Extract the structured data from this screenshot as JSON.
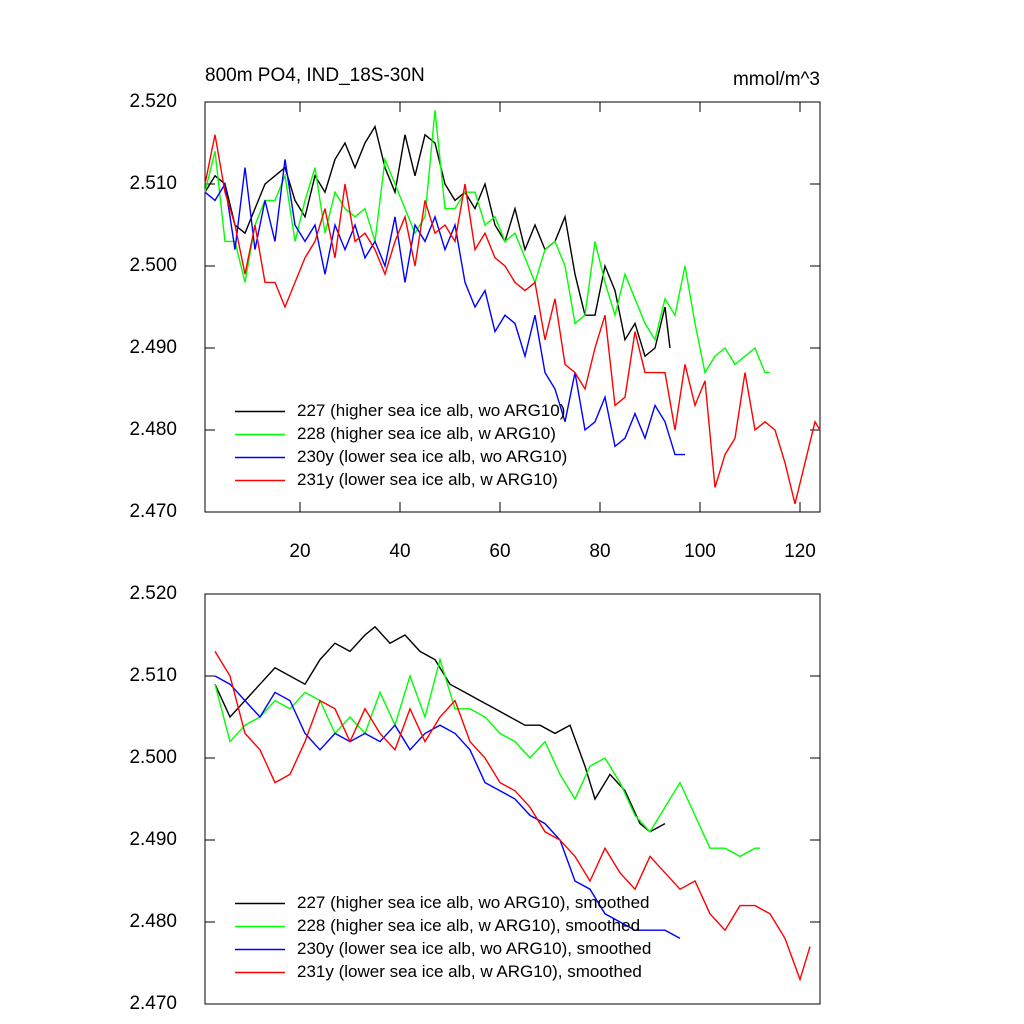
{
  "chart_data": [
    {
      "type": "line",
      "title": "800m PO4, IND_18S-30N",
      "unit_label": "mmol/m^3",
      "xlim": [
        1,
        124
      ],
      "xticks": [
        20,
        40,
        60,
        80,
        100,
        120
      ],
      "ylim": [
        2.47,
        2.52
      ],
      "yticks": [
        {
          "value": 2.52,
          "label": "2.520"
        },
        {
          "value": 2.51,
          "label": "2.510"
        },
        {
          "value": 2.5,
          "label": "2.500"
        },
        {
          "value": 2.49,
          "label": "2.490"
        },
        {
          "value": 2.48,
          "label": "2.480"
        },
        {
          "value": 2.47,
          "label": "2.470"
        }
      ],
      "legend": "lower left",
      "series": [
        {
          "name": "227 (higher sea ice alb, wo ARG10)",
          "color": "#000000",
          "x": [
            1,
            3,
            5,
            7,
            9,
            11,
            13,
            15,
            17,
            19,
            21,
            23,
            25,
            27,
            29,
            31,
            33,
            35,
            37,
            39,
            41,
            43,
            45,
            47,
            49,
            51,
            53,
            55,
            57,
            59,
            61,
            63,
            65,
            67,
            69,
            71,
            73,
            75,
            77,
            79,
            81,
            83,
            85,
            87,
            89,
            91,
            93,
            94
          ],
          "values": [
            2.509,
            2.511,
            2.51,
            2.505,
            2.504,
            2.507,
            2.51,
            2.511,
            2.512,
            2.508,
            2.506,
            2.511,
            2.509,
            2.513,
            2.515,
            2.512,
            2.515,
            2.517,
            2.512,
            2.509,
            2.516,
            2.511,
            2.516,
            2.515,
            2.51,
            2.508,
            2.509,
            2.507,
            2.51,
            2.505,
            2.503,
            2.507,
            2.502,
            2.505,
            2.502,
            2.503,
            2.506,
            2.499,
            2.494,
            2.494,
            2.5,
            2.497,
            2.491,
            2.493,
            2.489,
            2.49,
            2.495,
            2.49
          ]
        },
        {
          "name": "228 (higher sea ice alb, w ARG10)",
          "color": "#00ff00",
          "x": [
            1,
            3,
            5,
            7,
            9,
            11,
            13,
            15,
            17,
            19,
            21,
            23,
            25,
            27,
            29,
            31,
            33,
            35,
            37,
            39,
            41,
            43,
            45,
            47,
            49,
            51,
            53,
            55,
            57,
            59,
            61,
            63,
            65,
            67,
            69,
            71,
            73,
            75,
            77,
            79,
            81,
            83,
            85,
            87,
            89,
            91,
            93,
            95,
            97,
            99,
            101,
            103,
            105,
            107,
            109,
            111,
            113,
            114
          ],
          "values": [
            2.509,
            2.514,
            2.503,
            2.503,
            2.498,
            2.505,
            2.508,
            2.508,
            2.511,
            2.503,
            2.508,
            2.512,
            2.504,
            2.509,
            2.507,
            2.506,
            2.507,
            2.503,
            2.513,
            2.51,
            2.507,
            2.504,
            2.506,
            2.519,
            2.507,
            2.507,
            2.509,
            2.509,
            2.505,
            2.506,
            2.503,
            2.504,
            2.501,
            2.498,
            2.502,
            2.503,
            2.5,
            2.493,
            2.494,
            2.503,
            2.498,
            2.494,
            2.499,
            2.496,
            2.493,
            2.491,
            2.496,
            2.494,
            2.5,
            2.493,
            2.487,
            2.489,
            2.49,
            2.488,
            2.489,
            2.49,
            2.487,
            2.487
          ]
        },
        {
          "name": "230y (lower sea ice alb, wo ARG10)",
          "color": "#0000ff",
          "x": [
            1,
            3,
            5,
            7,
            9,
            11,
            13,
            15,
            17,
            19,
            21,
            23,
            25,
            27,
            29,
            31,
            33,
            35,
            37,
            39,
            41,
            43,
            45,
            47,
            49,
            51,
            53,
            55,
            57,
            59,
            61,
            63,
            65,
            67,
            69,
            71,
            73,
            75,
            77,
            79,
            81,
            83,
            85,
            87,
            89,
            91,
            93,
            95,
            97
          ],
          "values": [
            2.509,
            2.508,
            2.51,
            2.502,
            2.512,
            2.502,
            2.508,
            2.503,
            2.513,
            2.505,
            2.503,
            2.505,
            2.499,
            2.505,
            2.502,
            2.505,
            2.501,
            2.503,
            2.5,
            2.506,
            2.498,
            2.505,
            2.503,
            2.506,
            2.502,
            2.505,
            2.498,
            2.495,
            2.497,
            2.492,
            2.494,
            2.493,
            2.489,
            2.494,
            2.487,
            2.485,
            2.481,
            2.487,
            2.48,
            2.481,
            2.484,
            2.478,
            2.479,
            2.482,
            2.479,
            2.483,
            2.481,
            2.477,
            2.477
          ]
        },
        {
          "name": "231y (lower sea ice alb, w ARG10)",
          "color": "#ff0000",
          "x": [
            1,
            3,
            5,
            7,
            9,
            11,
            13,
            15,
            17,
            19,
            21,
            23,
            25,
            27,
            29,
            31,
            33,
            35,
            37,
            39,
            41,
            43,
            45,
            47,
            49,
            51,
            53,
            55,
            57,
            59,
            61,
            63,
            65,
            67,
            69,
            71,
            73,
            75,
            77,
            79,
            81,
            83,
            85,
            87,
            89,
            91,
            93,
            95,
            97,
            99,
            101,
            103,
            105,
            107,
            109,
            111,
            113,
            115,
            117,
            119,
            121,
            123,
            124
          ],
          "values": [
            2.51,
            2.516,
            2.509,
            2.505,
            2.499,
            2.505,
            2.498,
            2.498,
            2.495,
            2.498,
            2.501,
            2.503,
            2.507,
            2.501,
            2.51,
            2.503,
            2.504,
            2.502,
            2.499,
            2.503,
            2.506,
            2.5,
            2.508,
            2.504,
            2.505,
            2.503,
            2.51,
            2.502,
            2.504,
            2.501,
            2.5,
            2.498,
            2.497,
            2.498,
            2.491,
            2.496,
            2.488,
            2.487,
            2.485,
            2.49,
            2.494,
            2.483,
            2.484,
            2.492,
            2.487,
            2.487,
            2.487,
            2.48,
            2.488,
            2.483,
            2.486,
            2.473,
            2.477,
            2.479,
            2.487,
            2.48,
            2.481,
            2.48,
            2.476,
            2.471,
            2.476,
            2.481,
            2.48
          ]
        }
      ]
    },
    {
      "type": "line",
      "xlim": [
        1,
        124
      ],
      "ylim": [
        2.47,
        2.52
      ],
      "yticks": [
        {
          "value": 2.52,
          "label": "2.520"
        },
        {
          "value": 2.51,
          "label": "2.510"
        },
        {
          "value": 2.5,
          "label": "2.500"
        },
        {
          "value": 2.49,
          "label": "2.490"
        },
        {
          "value": 2.48,
          "label": "2.480"
        },
        {
          "value": 2.47,
          "label": "2.470"
        }
      ],
      "legend": "lower left",
      "series": [
        {
          "name": "227 (higher sea ice alb, wo ARG10), smoothed",
          "color": "#000000",
          "x": [
            3,
            6,
            9,
            12,
            15,
            18,
            21,
            24,
            27,
            30,
            33,
            35,
            38,
            41,
            44,
            47,
            50,
            53,
            56,
            59,
            62,
            65,
            68,
            71,
            74,
            77,
            79,
            82,
            85,
            88,
            90,
            93
          ],
          "values": [
            2.509,
            2.505,
            2.507,
            2.509,
            2.511,
            2.51,
            2.509,
            2.512,
            2.514,
            2.513,
            2.515,
            2.516,
            2.514,
            2.515,
            2.513,
            2.512,
            2.509,
            2.508,
            2.507,
            2.506,
            2.505,
            2.504,
            2.504,
            2.503,
            2.504,
            2.499,
            2.495,
            2.498,
            2.496,
            2.492,
            2.491,
            2.492
          ]
        },
        {
          "name": "228 (higher sea ice alb, w ARG10), smoothed",
          "color": "#00ff00",
          "x": [
            3,
            6,
            9,
            12,
            15,
            18,
            21,
            24,
            27,
            30,
            33,
            36,
            39,
            42,
            45,
            48,
            51,
            54,
            57,
            60,
            63,
            66,
            69,
            72,
            75,
            78,
            81,
            84,
            87,
            90,
            93,
            96,
            99,
            102,
            105,
            108,
            111,
            112
          ],
          "values": [
            2.509,
            2.502,
            2.504,
            2.505,
            2.507,
            2.506,
            2.508,
            2.507,
            2.503,
            2.505,
            2.503,
            2.508,
            2.504,
            2.51,
            2.505,
            2.512,
            2.506,
            2.506,
            2.505,
            2.503,
            2.502,
            2.5,
            2.502,
            2.498,
            2.495,
            2.499,
            2.5,
            2.497,
            2.493,
            2.491,
            2.494,
            2.497,
            2.493,
            2.489,
            2.489,
            2.488,
            2.489,
            2.489
          ]
        },
        {
          "name": "230y (lower sea ice alb, wo ARG10), smoothed",
          "color": "#0000ff",
          "x": [
            3,
            6,
            9,
            12,
            15,
            18,
            21,
            24,
            27,
            30,
            33,
            36,
            39,
            42,
            45,
            48,
            51,
            54,
            57,
            60,
            63,
            66,
            69,
            72,
            75,
            78,
            81,
            84,
            87,
            90,
            93,
            96
          ],
          "values": [
            2.51,
            2.509,
            2.507,
            2.505,
            2.508,
            2.507,
            2.503,
            2.501,
            2.503,
            2.502,
            2.503,
            2.502,
            2.504,
            2.501,
            2.503,
            2.504,
            2.503,
            2.501,
            2.497,
            2.496,
            2.495,
            2.493,
            2.492,
            2.49,
            2.485,
            2.484,
            2.481,
            2.48,
            2.479,
            2.479,
            2.479,
            2.478
          ]
        },
        {
          "name": "231y (lower sea ice alb, w ARG10), smoothed",
          "color": "#ff0000",
          "x": [
            3,
            6,
            9,
            12,
            15,
            18,
            21,
            24,
            27,
            30,
            33,
            36,
            39,
            42,
            45,
            48,
            51,
            54,
            57,
            60,
            63,
            66,
            69,
            72,
            75,
            78,
            81,
            84,
            87,
            90,
            93,
            96,
            99,
            102,
            105,
            108,
            111,
            114,
            117,
            120,
            122
          ],
          "values": [
            2.513,
            2.51,
            2.503,
            2.501,
            2.497,
            2.498,
            2.502,
            2.507,
            2.506,
            2.502,
            2.506,
            2.503,
            2.501,
            2.506,
            2.502,
            2.505,
            2.507,
            2.502,
            2.5,
            2.497,
            2.496,
            2.494,
            2.491,
            2.49,
            2.488,
            2.485,
            2.489,
            2.486,
            2.484,
            2.488,
            2.486,
            2.484,
            2.485,
            2.481,
            2.479,
            2.482,
            2.482,
            2.481,
            2.478,
            2.473,
            2.477
          ]
        }
      ]
    }
  ]
}
